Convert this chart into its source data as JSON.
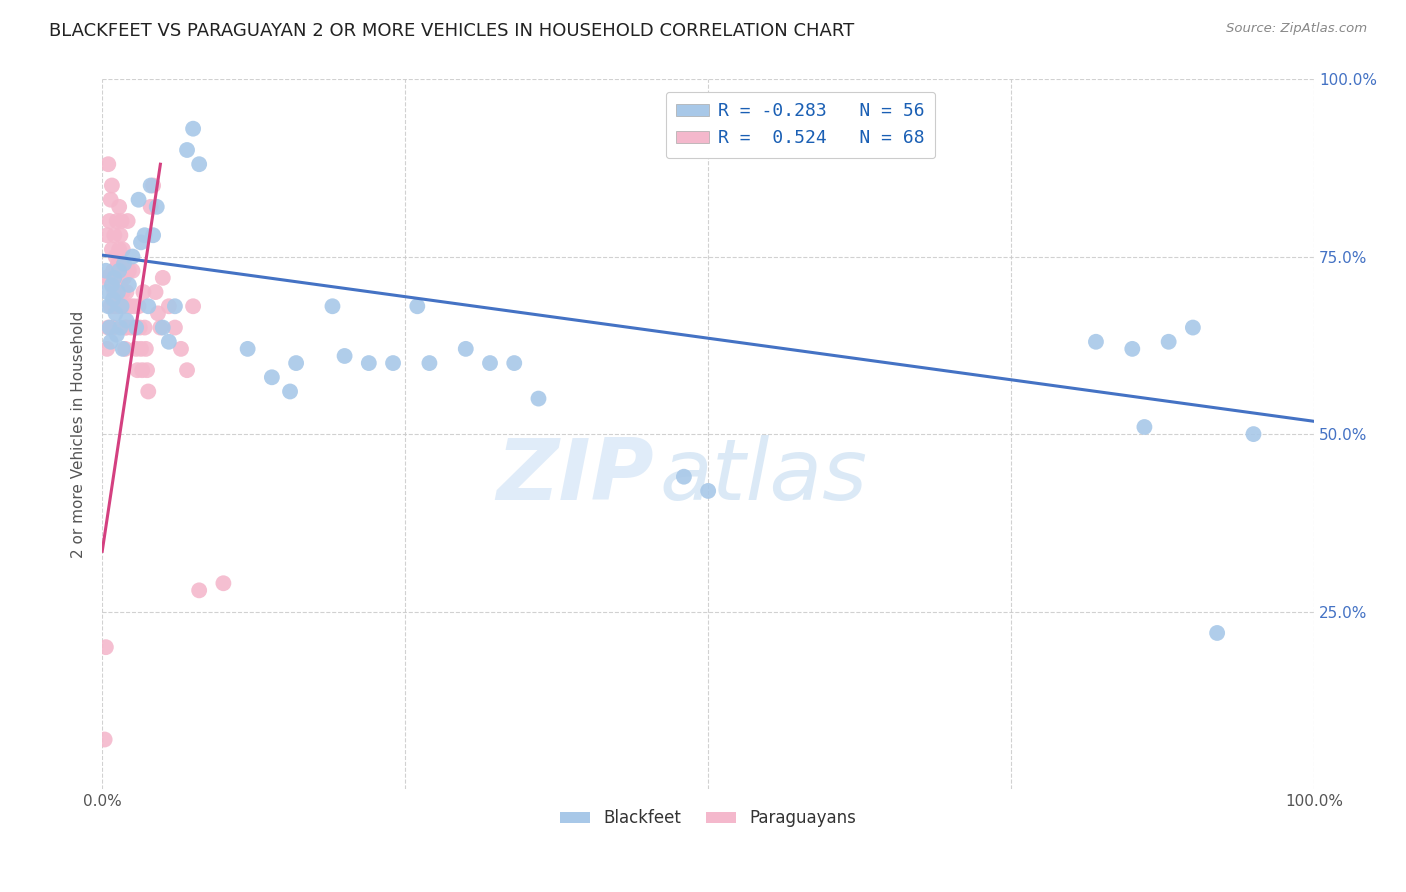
{
  "title": "BLACKFEET VS PARAGUAYAN 2 OR MORE VEHICLES IN HOUSEHOLD CORRELATION CHART",
  "source": "Source: ZipAtlas.com",
  "ylabel_left": "2 or more Vehicles in Household",
  "xlim": [
    0,
    1.0
  ],
  "ylim": [
    0,
    1.0
  ],
  "ytick_labels_right": [
    "25.0%",
    "50.0%",
    "75.0%",
    "100.0%"
  ],
  "legend_r_blue": "R = -0.283",
  "legend_n_blue": "N = 56",
  "legend_r_pink": "R =  0.524",
  "legend_n_pink": "N = 68",
  "legend_label_blue": "Blackfeet",
  "legend_label_pink": "Paraguayans",
  "blue_color": "#a8c8e8",
  "pink_color": "#f4b8cc",
  "trend_blue_color": "#4472c4",
  "trend_pink_color": "#d44080",
  "watermark_zip": "ZIP",
  "watermark_atlas": "atlas",
  "title_fontsize": 13,
  "axis_fontsize": 11,
  "tick_fontsize": 11,
  "blue_x": [
    0.003,
    0.004,
    0.005,
    0.006,
    0.007,
    0.008,
    0.009,
    0.01,
    0.011,
    0.012,
    0.013,
    0.014,
    0.015,
    0.016,
    0.017,
    0.018,
    0.02,
    0.022,
    0.025,
    0.028,
    0.03,
    0.032,
    0.035,
    0.038,
    0.04,
    0.042,
    0.045,
    0.05,
    0.055,
    0.06,
    0.07,
    0.075,
    0.08,
    0.12,
    0.14,
    0.155,
    0.16,
    0.19,
    0.2,
    0.22,
    0.24,
    0.26,
    0.27,
    0.3,
    0.32,
    0.34,
    0.36,
    0.48,
    0.5,
    0.82,
    0.85,
    0.86,
    0.88,
    0.9,
    0.92,
    0.95
  ],
  "blue_y": [
    0.73,
    0.7,
    0.68,
    0.65,
    0.63,
    0.71,
    0.69,
    0.72,
    0.67,
    0.64,
    0.7,
    0.73,
    0.65,
    0.68,
    0.62,
    0.74,
    0.66,
    0.71,
    0.75,
    0.65,
    0.83,
    0.77,
    0.78,
    0.68,
    0.85,
    0.78,
    0.82,
    0.65,
    0.63,
    0.68,
    0.9,
    0.93,
    0.88,
    0.62,
    0.58,
    0.56,
    0.6,
    0.68,
    0.61,
    0.6,
    0.6,
    0.68,
    0.6,
    0.62,
    0.6,
    0.6,
    0.55,
    0.44,
    0.42,
    0.63,
    0.62,
    0.51,
    0.63,
    0.65,
    0.22,
    0.5
  ],
  "pink_x": [
    0.002,
    0.003,
    0.003,
    0.004,
    0.004,
    0.005,
    0.005,
    0.006,
    0.006,
    0.007,
    0.007,
    0.008,
    0.008,
    0.009,
    0.009,
    0.01,
    0.01,
    0.011,
    0.011,
    0.012,
    0.012,
    0.013,
    0.013,
    0.014,
    0.014,
    0.015,
    0.015,
    0.016,
    0.016,
    0.017,
    0.017,
    0.018,
    0.018,
    0.019,
    0.019,
    0.02,
    0.02,
    0.021,
    0.022,
    0.023,
    0.024,
    0.025,
    0.026,
    0.027,
    0.028,
    0.029,
    0.03,
    0.031,
    0.032,
    0.033,
    0.034,
    0.035,
    0.036,
    0.037,
    0.038,
    0.04,
    0.042,
    0.044,
    0.046,
    0.048,
    0.05,
    0.055,
    0.06,
    0.065,
    0.07,
    0.075,
    0.08,
    0.1
  ],
  "pink_y": [
    0.07,
    0.2,
    0.72,
    0.62,
    0.78,
    0.65,
    0.88,
    0.72,
    0.8,
    0.68,
    0.83,
    0.76,
    0.85,
    0.73,
    0.65,
    0.78,
    0.7,
    0.75,
    0.68,
    0.72,
    0.8,
    0.74,
    0.68,
    0.76,
    0.82,
    0.78,
    0.72,
    0.8,
    0.74,
    0.7,
    0.76,
    0.72,
    0.68,
    0.65,
    0.62,
    0.7,
    0.65,
    0.8,
    0.73,
    0.68,
    0.65,
    0.73,
    0.68,
    0.65,
    0.62,
    0.59,
    0.68,
    0.65,
    0.62,
    0.59,
    0.7,
    0.65,
    0.62,
    0.59,
    0.56,
    0.82,
    0.85,
    0.7,
    0.67,
    0.65,
    0.72,
    0.68,
    0.65,
    0.62,
    0.59,
    0.68,
    0.28,
    0.29
  ],
  "trend_blue_x0": 0.0,
  "trend_blue_x1": 1.0,
  "trend_blue_y0": 0.752,
  "trend_blue_y1": 0.518,
  "trend_pink_x0": 0.0,
  "trend_pink_x1": 0.048,
  "trend_pink_y0": 0.335,
  "trend_pink_y1": 0.88
}
